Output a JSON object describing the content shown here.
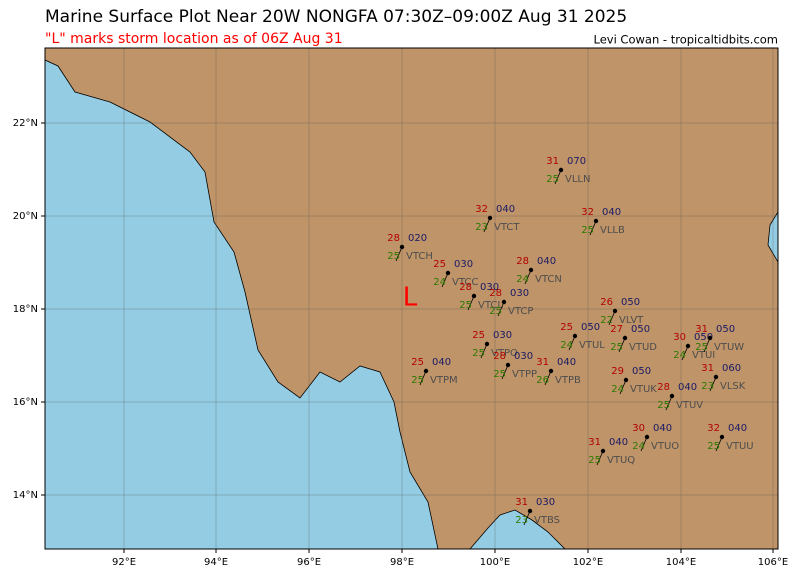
{
  "header": {
    "title": "Marine Surface Plot Near 20W NONGFA 07:30Z–09:00Z Aug 31 2025",
    "subtitle": "\"L\" marks storm location as of 06Z Aug 31",
    "credit": "Levi Cowan - tropicaltidbits.com"
  },
  "map": {
    "lon_labels": [
      "92°E",
      "94°E",
      "96°E",
      "98°E",
      "100°E",
      "102°E",
      "104°E",
      "106°E"
    ],
    "lat_labels": [
      "14°N",
      "16°N",
      "18°N",
      "20°N",
      "22°N"
    ],
    "storm_marker": "L",
    "stations": [
      {
        "id": "VLLN",
        "temp": 31,
        "dew": 25,
        "pres": "070"
      },
      {
        "id": "VTCT",
        "temp": 32,
        "dew": 23,
        "pres": "040"
      },
      {
        "id": "VLLB",
        "temp": 32,
        "dew": 25,
        "pres": "040"
      },
      {
        "id": "VTCH",
        "temp": 28,
        "dew": 25,
        "pres": "020"
      },
      {
        "id": "VTCN",
        "temp": 28,
        "dew": 24,
        "pres": "040"
      },
      {
        "id": "VTCC",
        "temp": 25,
        "dew": 24,
        "pres": "030"
      },
      {
        "id": "VTCL",
        "temp": 28,
        "dew": 25,
        "pres": "030"
      },
      {
        "id": "VTCP",
        "temp": 28,
        "dew": 25,
        "pres": "030"
      },
      {
        "id": "VLVT",
        "temp": 26,
        "dew": 22,
        "pres": "050"
      },
      {
        "id": "VTUL",
        "temp": 25,
        "dew": 24,
        "pres": "050"
      },
      {
        "id": "VTUD",
        "temp": 27,
        "dew": 25,
        "pres": "050"
      },
      {
        "id": "VTUI",
        "temp": 30,
        "dew": 24,
        "pres": "050"
      },
      {
        "id": "VTUW",
        "temp": 31,
        "dew": 25,
        "pres": "050"
      },
      {
        "id": "VTPO",
        "temp": 25,
        "dew": 25,
        "pres": "030"
      },
      {
        "id": "VTPP",
        "temp": 28,
        "dew": 25,
        "pres": "030"
      },
      {
        "id": "VTPB",
        "temp": 31,
        "dew": 26,
        "pres": "040"
      },
      {
        "id": "VTPM",
        "temp": 25,
        "dew": 25,
        "pres": "040"
      },
      {
        "id": "VLSK",
        "temp": 31,
        "dew": 23,
        "pres": "060"
      },
      {
        "id": "VTUK",
        "temp": 29,
        "dew": 24,
        "pres": "050"
      },
      {
        "id": "VTUV",
        "temp": 28,
        "dew": 25,
        "pres": "040"
      },
      {
        "id": "VTUO",
        "temp": 30,
        "dew": 24,
        "pres": "040"
      },
      {
        "id": "VTUU",
        "temp": 32,
        "dew": 25,
        "pres": "040"
      },
      {
        "id": "VTUQ",
        "temp": 31,
        "dew": 25,
        "pres": "040"
      },
      {
        "id": "VTBS",
        "temp": 31,
        "dew": 23,
        "pres": "030"
      }
    ]
  }
}
